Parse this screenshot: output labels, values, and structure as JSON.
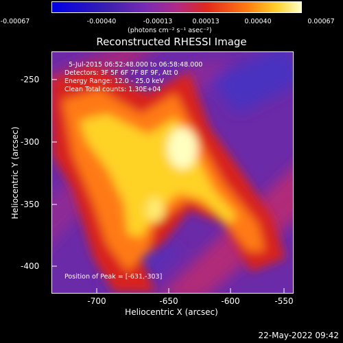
{
  "colorbar": {
    "ticks": [
      "-0.00067",
      "-0.00040",
      "-0.00013",
      "0.00013",
      "0.00040",
      "0.00067"
    ],
    "units": "(photons cm⁻² s⁻¹ asec⁻²)"
  },
  "title": "Reconstructed RHESSI Image",
  "info": {
    "time": "5-Jul-2015 06:52:48.000 to 06:58:48.000",
    "detectors": "Detectors: 3F 5F 6F 7F 8F 9F, Att 0",
    "energy": "Energy Range: 12.0 - 25.0 keV",
    "clean": "Clean     Total counts: 1.30E+04",
    "peak": "Position of Peak = [-631,-303]"
  },
  "axes": {
    "xticks": [
      "-700",
      "-650",
      "-600",
      "-550"
    ],
    "yticks": [
      "-250",
      "-300",
      "-350",
      "-400"
    ],
    "xlabel": "Heliocentric X (arcsec)",
    "ylabel": "Heliocentric Y (arcsec)"
  },
  "timestamp": "22-May-2022 09:42"
}
